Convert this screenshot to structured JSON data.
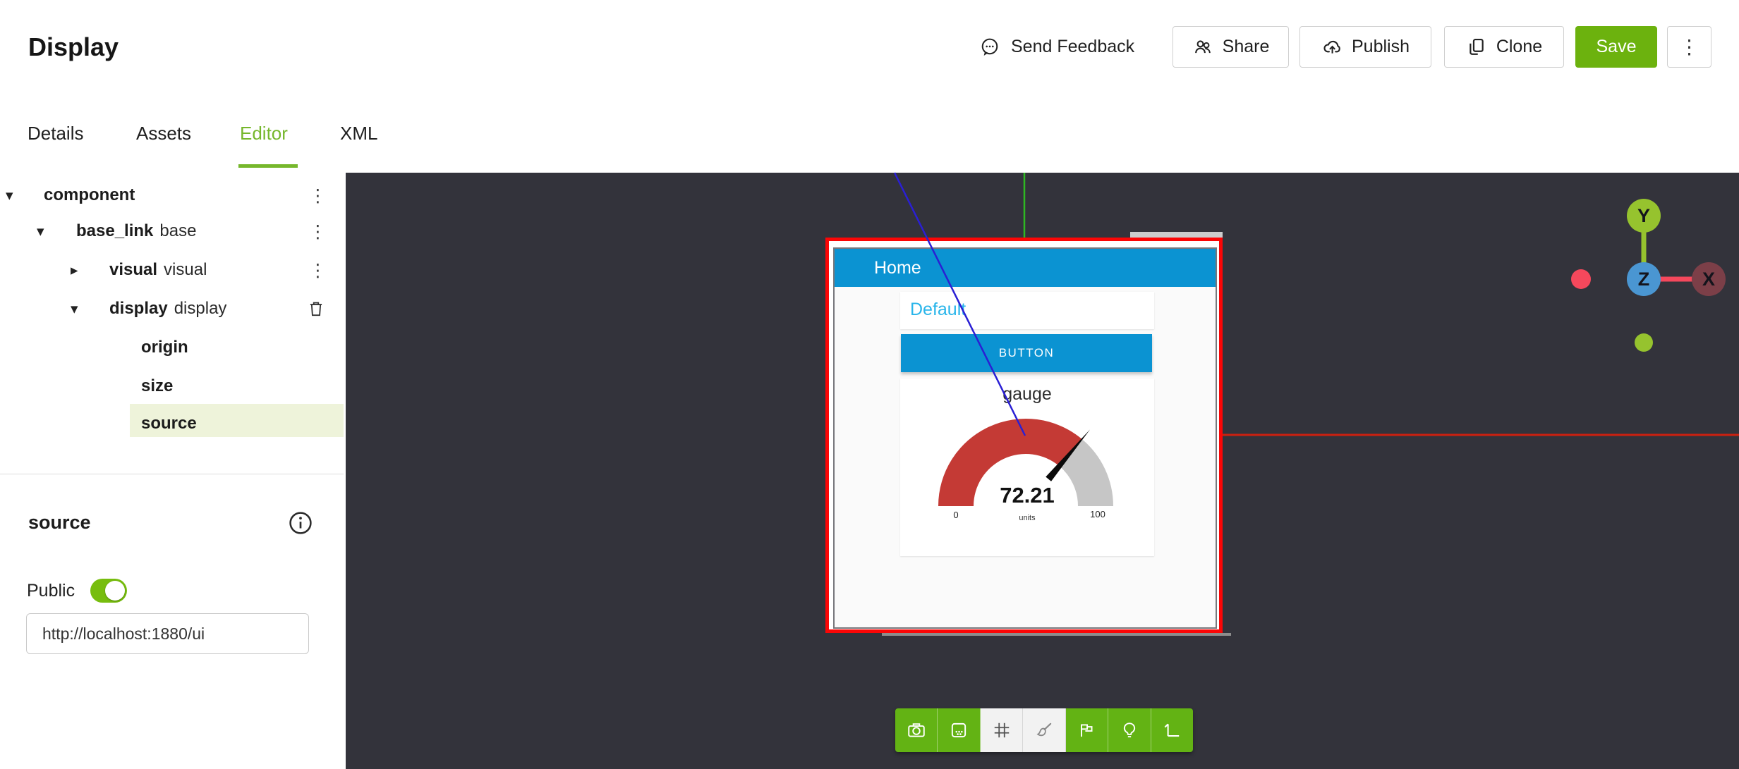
{
  "header": {
    "title": "Display",
    "send_feedback": "Send Feedback",
    "share": "Share",
    "publish": "Publish",
    "clone": "Clone",
    "save": "Save",
    "more": "⋮"
  },
  "tabs": {
    "details": "Details",
    "assets": "Assets",
    "editor": "Editor",
    "xml": "XML",
    "active": "Editor"
  },
  "tree": {
    "rows": [
      {
        "name": "component",
        "suffix": ""
      },
      {
        "name": "base_link",
        "suffix": "base"
      },
      {
        "name": "visual",
        "suffix": "visual"
      },
      {
        "name": "display",
        "suffix": "display"
      },
      {
        "name": "origin",
        "suffix": ""
      },
      {
        "name": "size",
        "suffix": ""
      },
      {
        "name": "source",
        "suffix": ""
      }
    ],
    "selected": "source"
  },
  "inspector": {
    "heading": "source",
    "public_label": "Public",
    "public_on": true,
    "url": "http://localhost:1880/ui"
  },
  "display_panel": {
    "header": "Home",
    "tab_label": "Default",
    "button_label": "BUTTON",
    "gauge": {
      "title": "gauge",
      "value": 72.21,
      "min": 0,
      "max": 100,
      "units": "units"
    }
  },
  "gizmo": {
    "x": "X",
    "y": "Y",
    "z": "Z"
  },
  "toolbar": {
    "buttons": [
      {
        "name": "screenshot",
        "active": true
      },
      {
        "name": "pattern-view",
        "active": true
      },
      {
        "name": "grid",
        "active": false
      },
      {
        "name": "paint",
        "active": false
      },
      {
        "name": "flags",
        "active": true
      },
      {
        "name": "light",
        "active": true
      },
      {
        "name": "axes-view",
        "active": true
      }
    ]
  },
  "colors": {
    "accent_green": "#6cb20e",
    "tab_green": "#76b72c",
    "toggle_green": "#77bd0e",
    "toolbar_green": "#63b314",
    "panel_blue": "#0b93d2",
    "link_blue": "#29b5ea",
    "selection_red": "#fb0606",
    "axis_red": "#cc2010",
    "axis_green": "#2eb822",
    "axis_blue": "#2a1fd4",
    "gauge_fill_red": "#c43a35",
    "gauge_rest_gray": "#c6c6c6",
    "canvas_bg": "#33333b",
    "gizmo_yellowgreen": "#96c32e",
    "gizmo_blue": "#4a96d2",
    "gizmo_maroon": "#7c3f48",
    "gizmo_pink": "#f5485c"
  }
}
